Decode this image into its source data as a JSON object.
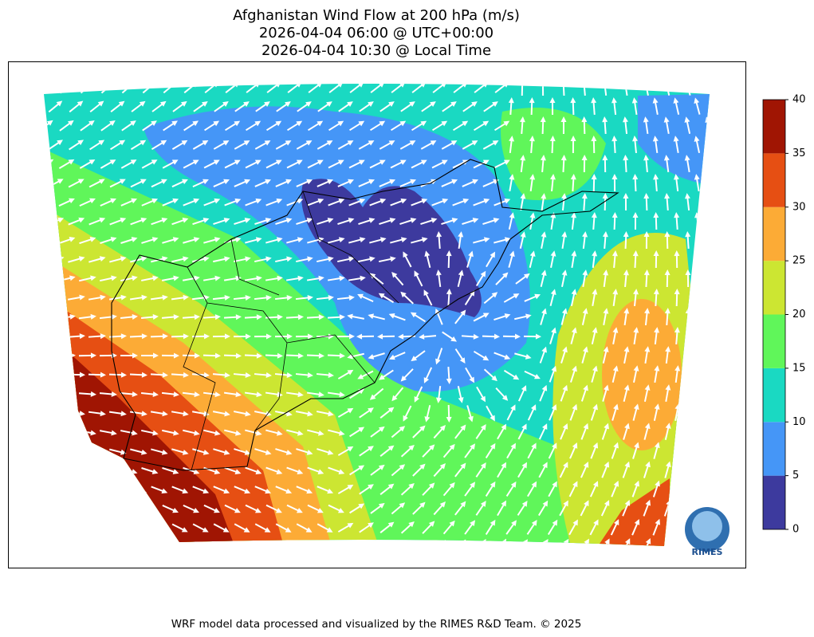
{
  "title": [
    "Afghanistan Wind Flow at 200 hPa (m/s)",
    "2026-04-04 06:00 @ UTC+00:00",
    "2026-04-04 10:30 @ Local Time"
  ],
  "colorbar": {
    "ticks": [
      0,
      5,
      10,
      15,
      20,
      25,
      30,
      35,
      40
    ],
    "colors": [
      "#3d3a9e",
      "#4596f7",
      "#1ad9c2",
      "#60f65a",
      "#cce632",
      "#fcab36",
      "#e64f13",
      "#a01503"
    ]
  },
  "logo": "RIMES",
  "footer": "WRF model data processed and visualized by the RIMES R&D Team. © 2025"
}
